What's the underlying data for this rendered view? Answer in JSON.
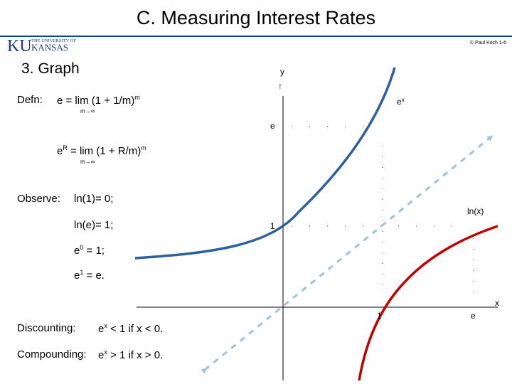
{
  "slide": {
    "title": "C.  Measuring Interest Rates",
    "copyright": "© Paul Koch 1-6",
    "section": "3.  Graph"
  },
  "logo": {
    "initials": "KU",
    "line1": "THE UNIVERSITY OF",
    "line2": "KANSAS",
    "color": "#1a3f8a"
  },
  "text": {
    "defn_label": "Defn:",
    "defn_formula": "e  = lim (1 + 1/m)",
    "defn_exp": "m",
    "defn_sub": "m→∞",
    "eR_base": "e",
    "eR_exp": "R",
    "eR_formula": " = lim (1 + R/m)",
    "eR_formula_exp": "m",
    "eR_sub": "m→∞",
    "observe_label": "Observe:",
    "obs1": "ln(1)= 0;",
    "obs2": "ln(e)= 1;",
    "obs3_base": "e",
    "obs3_exp": "0",
    "obs3_rest": " = 1;",
    "obs4_base": "e",
    "obs4_exp": "1",
    "obs4_rest": " = e.",
    "disc_label": "Discounting:",
    "disc_base": "e",
    "disc_exp": "x",
    "disc_rest": " < 1   if  x < 0.",
    "comp_label": "Compounding:",
    "comp_base": "e",
    "comp_exp": "x",
    "comp_rest": " > 1   if  x > 0."
  },
  "graph": {
    "y_label": "y",
    "y_arrow": "↑",
    "x_label": "x",
    "ex_label": "e",
    "ex_label_exp": "x",
    "ln_label": "ln(x)",
    "tick_e_y": "e",
    "tick_1_y": "1",
    "tick_1_x": "1",
    "tick_e_x": "e",
    "colors": {
      "exp_curve": "#2e5f9e",
      "log_curve": "#c00000",
      "diagonal": "#9cc4d8",
      "axes": "#000000"
    }
  }
}
